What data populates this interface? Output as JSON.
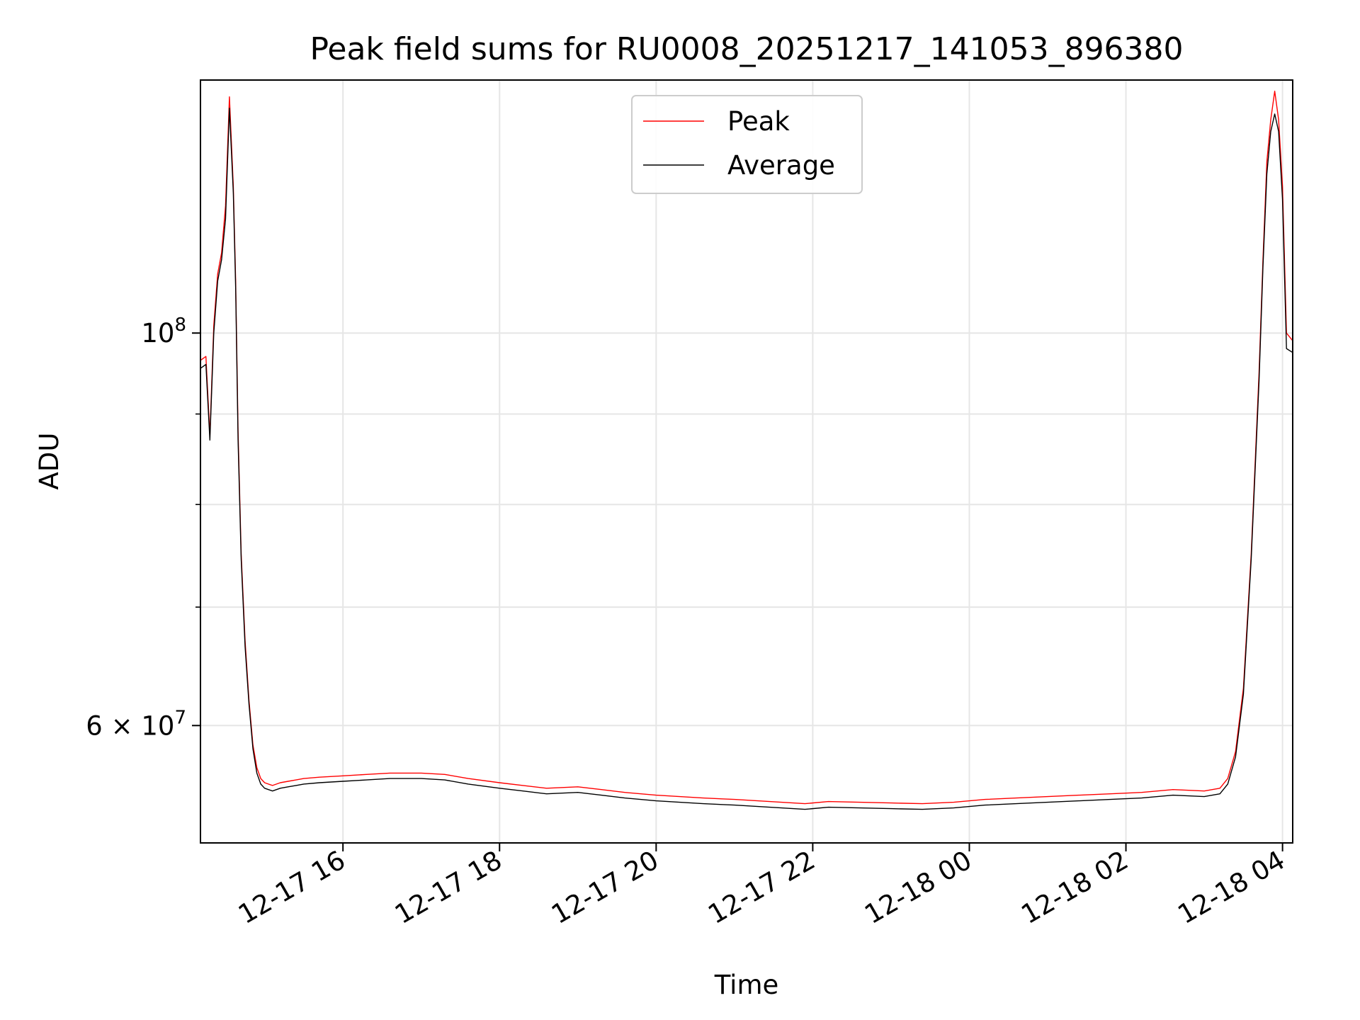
{
  "chart_data": {
    "type": "line",
    "title": "Peak field sums for RU0008_20251217_141053_896380",
    "xlabel": "Time",
    "ylabel": "ADU",
    "yscale": "log",
    "ylim": [
      51500000,
      139000000
    ],
    "xlim_hours": [
      14.18,
      28.13
    ],
    "x_unit": "hours since 2025-12-17 00:00",
    "grid": true,
    "legend_position": "top-center",
    "x_ticks": [
      {
        "hours": 16,
        "label": "12-17 16"
      },
      {
        "hours": 18,
        "label": "12-17 18"
      },
      {
        "hours": 20,
        "label": "12-17 20"
      },
      {
        "hours": 22,
        "label": "12-17 22"
      },
      {
        "hours": 24,
        "label": "12-18 00"
      },
      {
        "hours": 26,
        "label": "12-18 02"
      },
      {
        "hours": 28,
        "label": "12-18 04"
      }
    ],
    "y_ticks_major": [
      {
        "value": 100000000,
        "base": "10",
        "exp": "8"
      },
      {
        "value": 60000000,
        "base": "6 × 10",
        "exp": "7"
      }
    ],
    "y_ticks_minor": [
      70000000,
      80000000,
      90000000
    ],
    "series": [
      {
        "name": "Peak",
        "color": "#ff0000",
        "x": [
          14.18,
          14.25,
          14.3,
          14.35,
          14.4,
          14.45,
          14.5,
          14.55,
          14.6,
          14.63,
          14.66,
          14.7,
          14.75,
          14.8,
          14.85,
          14.9,
          14.95,
          15.0,
          15.1,
          15.2,
          15.3,
          15.4,
          15.5,
          15.7,
          16.0,
          16.3,
          16.6,
          17.0,
          17.3,
          17.6,
          18.0,
          18.3,
          18.6,
          19.0,
          19.3,
          19.6,
          20.0,
          20.3,
          20.6,
          21.0,
          21.3,
          21.6,
          21.9,
          22.2,
          22.6,
          23.0,
          23.4,
          23.8,
          24.2,
          24.6,
          25.0,
          25.4,
          25.8,
          26.2,
          26.6,
          27.0,
          27.2,
          27.3,
          27.4,
          27.5,
          27.6,
          27.7,
          27.75,
          27.8,
          27.85,
          27.9,
          27.95,
          28.0,
          28.05,
          28.13
        ],
        "values": [
          96500000,
          97000000,
          87500000,
          101000000,
          108000000,
          111000000,
          118000000,
          136000000,
          121000000,
          107000000,
          88000000,
          75000000,
          67000000,
          62000000,
          58500000,
          56800000,
          56000000,
          55700000,
          55500000,
          55700000,
          55800000,
          55900000,
          56000000,
          56100000,
          56200000,
          56300000,
          56400000,
          56400000,
          56300000,
          56000000,
          55700000,
          55500000,
          55300000,
          55400000,
          55200000,
          55000000,
          54800000,
          54700000,
          54600000,
          54500000,
          54400000,
          54300000,
          54200000,
          54350000,
          54300000,
          54250000,
          54200000,
          54300000,
          54500000,
          54600000,
          54700000,
          54800000,
          54900000,
          55000000,
          55200000,
          55100000,
          55300000,
          56000000,
          58000000,
          63000000,
          75000000,
          95000000,
          110000000,
          125000000,
          132000000,
          137000000,
          132000000,
          121000000,
          100000000,
          99000000
        ]
      },
      {
        "name": "Average",
        "color": "#000000",
        "x": [
          14.18,
          14.25,
          14.3,
          14.35,
          14.4,
          14.45,
          14.5,
          14.55,
          14.6,
          14.63,
          14.66,
          14.7,
          14.75,
          14.8,
          14.85,
          14.9,
          14.95,
          15.0,
          15.1,
          15.2,
          15.3,
          15.4,
          15.5,
          15.7,
          16.0,
          16.3,
          16.6,
          17.0,
          17.3,
          17.6,
          18.0,
          18.3,
          18.6,
          19.0,
          19.3,
          19.6,
          20.0,
          20.3,
          20.6,
          21.0,
          21.3,
          21.6,
          21.9,
          22.2,
          22.6,
          23.0,
          23.4,
          23.8,
          24.2,
          24.6,
          25.0,
          25.4,
          25.8,
          26.2,
          26.6,
          27.0,
          27.2,
          27.3,
          27.4,
          27.5,
          27.6,
          27.7,
          27.75,
          27.8,
          27.85,
          27.9,
          27.95,
          28.0,
          28.05,
          28.13
        ],
        "values": [
          95500000,
          96000000,
          87000000,
          100000000,
          107000000,
          110000000,
          116000000,
          134000000,
          120000000,
          106000000,
          87000000,
          74500000,
          66500000,
          61700000,
          58200000,
          56400000,
          55600000,
          55300000,
          55100000,
          55300000,
          55400000,
          55500000,
          55600000,
          55700000,
          55800000,
          55900000,
          56000000,
          56000000,
          55900000,
          55600000,
          55300000,
          55100000,
          54900000,
          55000000,
          54800000,
          54600000,
          54400000,
          54300000,
          54200000,
          54100000,
          54000000,
          53900000,
          53800000,
          53950000,
          53900000,
          53850000,
          53800000,
          53900000,
          54100000,
          54200000,
          54300000,
          54400000,
          54500000,
          54600000,
          54800000,
          54700000,
          54900000,
          55600000,
          57600000,
          62500000,
          74500000,
          94000000,
          109000000,
          123000000,
          130000000,
          133000000,
          130000000,
          119000000,
          98000000,
          97500000
        ]
      }
    ]
  }
}
